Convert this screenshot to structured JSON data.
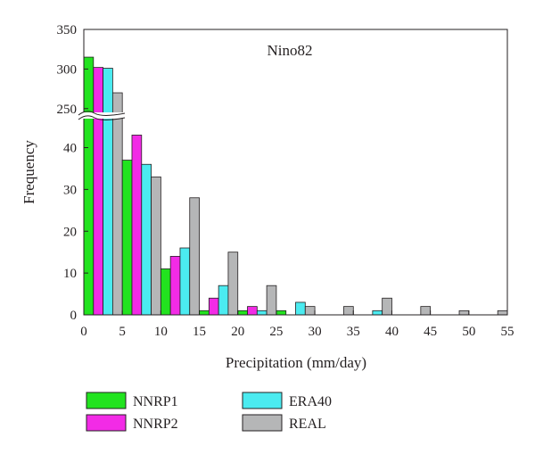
{
  "chart_data": {
    "type": "bar",
    "annotation": "Nino82",
    "xlabel": "Precipitation (mm/day)",
    "ylabel": "Frequency",
    "x_ticks": [
      "0",
      "5",
      "10",
      "15",
      "20",
      "25",
      "30",
      "35",
      "40",
      "45",
      "50",
      "55"
    ],
    "y_ticks_lower": [
      "0",
      "10",
      "20",
      "30",
      "40"
    ],
    "y_ticks_upper": [
      "250",
      "300",
      "350"
    ],
    "xlim": [
      0,
      55
    ],
    "ylim_lower": [
      0,
      48
    ],
    "ylim_upper": [
      243,
      350
    ],
    "bin_width": 5,
    "categories": [
      "0-5",
      "5-10",
      "10-15",
      "15-20",
      "20-25",
      "25-30",
      "30-35",
      "35-40",
      "40-45",
      "45-50",
      "50-55"
    ],
    "series": [
      {
        "name": "NNRP1",
        "color": "#22e31f",
        "values": [
          315,
          37,
          11,
          1,
          1,
          1,
          0,
          0,
          0,
          0,
          0
        ]
      },
      {
        "name": "NNRP2",
        "color": "#f22be6",
        "values": [
          302,
          43,
          14,
          4,
          2,
          0,
          0,
          0,
          0,
          0,
          0
        ]
      },
      {
        "name": "ERA40",
        "color": "#4bebf0",
        "values": [
          301,
          36,
          16,
          7,
          1,
          3,
          0,
          1,
          0,
          0,
          0
        ]
      },
      {
        "name": "REAL",
        "color": "#b5b6b7",
        "values": [
          270,
          33,
          28,
          15,
          7,
          2,
          2,
          4,
          2,
          1,
          1
        ]
      }
    ],
    "legend_position": "bottom",
    "grid": false,
    "axis_break": true
  }
}
